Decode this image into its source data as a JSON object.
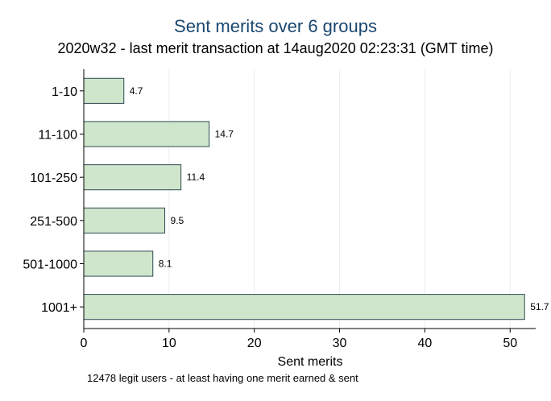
{
  "title": "Sent merits over 6 groups",
  "subtitle": "2020w32 - last merit transaction at 14aug2020 02:23:31 (GMT time)",
  "note": "12478 legit users - at least having one merit earned & sent",
  "colors": {
    "bar_fill": "#cfe6cc",
    "bar_stroke": "#2e4a52",
    "grid": "#e8edf1",
    "title": "#1a476f"
  },
  "chart_data": {
    "type": "bar",
    "orientation": "horizontal",
    "categories": [
      "1-10",
      "11-100",
      "101-250",
      "251-500",
      "501-1000",
      "1001+"
    ],
    "values": [
      4.7,
      14.7,
      11.4,
      9.5,
      8.1,
      51.7
    ],
    "value_labels": [
      "4.7",
      "14.7",
      "11.4",
      "9.5",
      "8.1",
      "51.7"
    ],
    "title": "Sent merits over 6 groups",
    "subtitle": "2020w32 - last merit transaction at 14aug2020 02:23:31 (GMT time)",
    "xlabel": "Sent merits",
    "ylabel": "",
    "xlim": [
      0,
      53
    ],
    "xticks": [
      0,
      10,
      20,
      30,
      40,
      50
    ],
    "grid": true
  }
}
